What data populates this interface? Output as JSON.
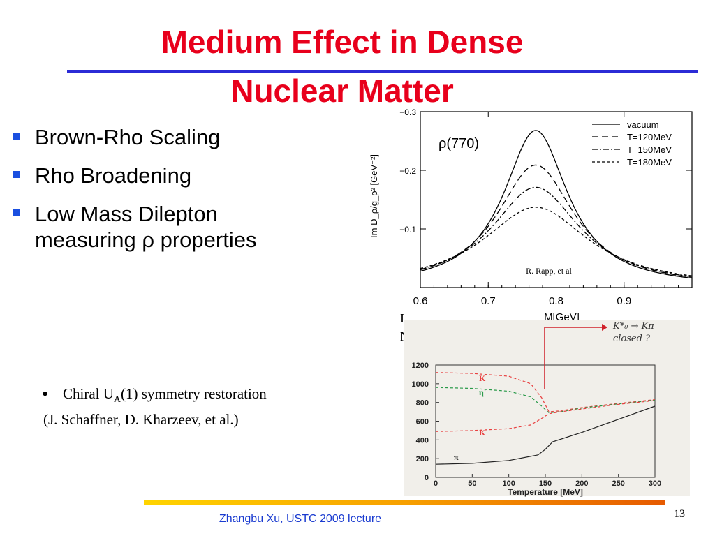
{
  "slide": {
    "title_line1": "Medium Effect in Dense",
    "title_line2": "Nuclear Matter",
    "bullets": [
      "Brown-Rho Scaling",
      "Rho Broadening",
      "Low Mass Dilepton",
      "measuring ρ properties"
    ],
    "chiral_text": "Chiral U",
    "chiral_sub": "A",
    "chiral_rest": "(1) symmetry restoration",
    "chiral_ref": "(J. Schaffner, D. Kharzeev, et al.)",
    "footer": "Zhangbu Xu, USTC 2009 lecture",
    "page_number": "13",
    "partial_text_1": "I",
    "partial_text_2": "N",
    "colors": {
      "title": "#e8001c",
      "rule": "#2b2bd6",
      "bullet": "#1a4fe0",
      "footer_text": "#1a3bd0"
    }
  },
  "chart_data": [
    {
      "type": "line",
      "title": "ρ(770)",
      "xlabel": "M[GeV]",
      "ylabel": "Im D_ρ/g_ρ² [GeV⁻²]",
      "xlim": [
        0.6,
        1.0
      ],
      "ylim": [
        0.0,
        -0.3
      ],
      "xticks": [
        0.6,
        0.7,
        0.8,
        0.9
      ],
      "yticks": [
        -0.1,
        -0.2,
        -0.3
      ],
      "xtick_labels": [
        "0.6",
        "0.7",
        "0.8",
        "0.9"
      ],
      "ytick_labels": [
        "−0.1",
        "−0.2",
        "−0.3"
      ],
      "annotation": "R. Rapp, et al",
      "legend_position": "top-right",
      "series": [
        {
          "name": "vacuum",
          "style": "solid",
          "peak": -0.268,
          "width": 0.058,
          "x": [
            0.6,
            0.65,
            0.7,
            0.74,
            0.77,
            0.8,
            0.85,
            0.9,
            1.0
          ],
          "y": [
            -0.02,
            -0.038,
            -0.098,
            -0.21,
            -0.268,
            -0.21,
            -0.095,
            -0.04,
            -0.012
          ]
        },
        {
          "name": "T=120MeV",
          "style": "dash",
          "peak": -0.209,
          "width": 0.07,
          "x": [
            0.6,
            0.65,
            0.7,
            0.74,
            0.77,
            0.8,
            0.85,
            0.9,
            1.0
          ],
          "y": [
            -0.028,
            -0.05,
            -0.1,
            -0.18,
            -0.209,
            -0.18,
            -0.1,
            -0.05,
            -0.018
          ]
        },
        {
          "name": "T=150MeV",
          "style": "dashdot",
          "peak": -0.171,
          "width": 0.08,
          "x": [
            0.6,
            0.65,
            0.7,
            0.74,
            0.77,
            0.8,
            0.85,
            0.9,
            1.0
          ],
          "y": [
            -0.034,
            -0.06,
            -0.103,
            -0.155,
            -0.171,
            -0.155,
            -0.1,
            -0.058,
            -0.022
          ]
        },
        {
          "name": "T=180MeV",
          "style": "shortdash",
          "peak": -0.137,
          "width": 0.095,
          "x": [
            0.6,
            0.65,
            0.7,
            0.74,
            0.77,
            0.8,
            0.85,
            0.9,
            1.0
          ],
          "y": [
            -0.042,
            -0.068,
            -0.104,
            -0.13,
            -0.137,
            -0.13,
            -0.1,
            -0.066,
            -0.028
          ]
        }
      ]
    },
    {
      "type": "line",
      "title": "",
      "xlabel": "Temperature [MeV]",
      "ylabel": "",
      "xlim": [
        0,
        300
      ],
      "ylim": [
        0,
        1200
      ],
      "xticks": [
        0,
        50,
        100,
        150,
        200,
        250,
        300
      ],
      "yticks": [
        0,
        200,
        400,
        600,
        800,
        1000,
        1200
      ],
      "handwritten_note_line1": "K*₀ → Kπ",
      "handwritten_note_line2": "closed ?",
      "series": [
        {
          "name": "K",
          "color": "#e84040",
          "style": "dash",
          "x": [
            0,
            50,
            100,
            130,
            145,
            155,
            170,
            200,
            250,
            300
          ],
          "y": [
            1120,
            1110,
            1080,
            1000,
            850,
            700,
            710,
            745,
            790,
            830
          ]
        },
        {
          "name": "η'",
          "color": "#2a9a4a",
          "style": "dash",
          "x": [
            0,
            50,
            100,
            130,
            145,
            155,
            170,
            200,
            250,
            300
          ],
          "y": [
            960,
            950,
            920,
            860,
            760,
            690,
            700,
            740,
            785,
            825
          ]
        },
        {
          "name": "K",
          "color": "#e84040",
          "style": "dash",
          "x": [
            0,
            50,
            100,
            130,
            145,
            155,
            170,
            200,
            250,
            300
          ],
          "y": [
            490,
            500,
            520,
            560,
            630,
            680,
            700,
            730,
            780,
            820
          ]
        },
        {
          "name": "π",
          "color": "#222222",
          "style": "solid",
          "x": [
            0,
            50,
            100,
            140,
            150,
            160,
            200,
            250,
            300
          ],
          "y": [
            140,
            150,
            180,
            240,
            300,
            380,
            480,
            620,
            760
          ]
        }
      ]
    }
  ]
}
